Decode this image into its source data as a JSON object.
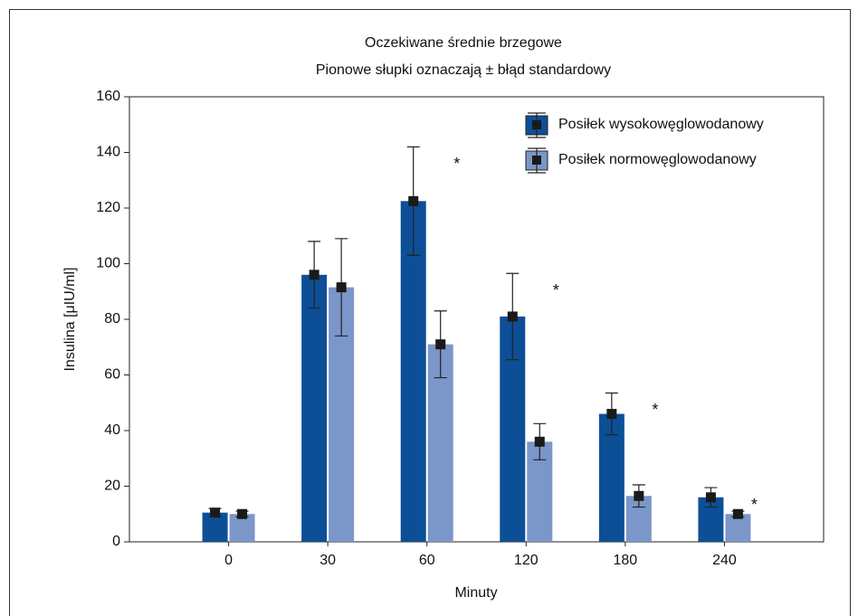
{
  "chart_data": {
    "type": "bar",
    "title": "Oczekiwane średnie brzegowe",
    "subtitle": "Pionowe słupki oznaczają ± błąd standardowy",
    "x_label": "Minuty",
    "y_label": "Insulina [μIU/ml]",
    "categories": [
      "0",
      "30",
      "60",
      "120",
      "180",
      "240"
    ],
    "series": [
      {
        "name": "Posiłek wysokowęglowodanowy",
        "color": "#0d4f97",
        "values": [
          10.5,
          96,
          122.5,
          81,
          46,
          16
        ],
        "errors": [
          1.5,
          12,
          19.5,
          15.5,
          7.5,
          3.5
        ]
      },
      {
        "name": "Posiłek normowęglowodanowy",
        "color": "#7b96c8",
        "values": [
          10,
          91.5,
          71,
          36,
          16.5,
          10
        ],
        "errors": [
          1,
          17.5,
          12,
          6.5,
          4,
          1
        ]
      }
    ],
    "annotations": [
      {
        "category": "60",
        "text": "*"
      },
      {
        "category": "120",
        "text": "*"
      },
      {
        "category": "180",
        "text": "*"
      },
      {
        "category": "240",
        "text": "*"
      }
    ],
    "ylim": [
      0,
      160
    ],
    "yticks": [
      0,
      20,
      40,
      60,
      80,
      100,
      120,
      140,
      160
    ],
    "grid": false,
    "legend": "upper right"
  }
}
